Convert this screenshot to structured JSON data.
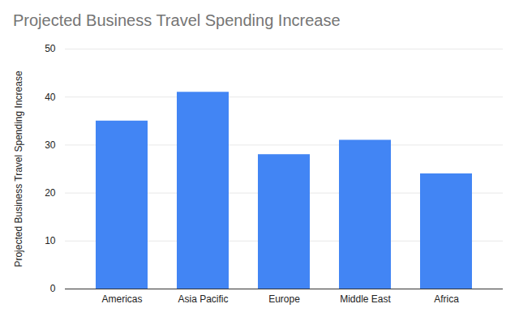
{
  "chart_data": {
    "type": "bar",
    "title": "Projected Business Travel Spending Increase",
    "y_label": "Projected Business Travel Spending Increase",
    "categories": [
      "Americas",
      "Asia Pacific",
      "Europe",
      "Middle East",
      "Africa"
    ],
    "values": [
      35,
      41,
      28,
      31,
      24
    ],
    "color": "#4285f4",
    "ylim": [
      0,
      50
    ],
    "yticks": [
      0,
      10,
      20,
      30,
      40,
      50
    ],
    "grid": true
  }
}
